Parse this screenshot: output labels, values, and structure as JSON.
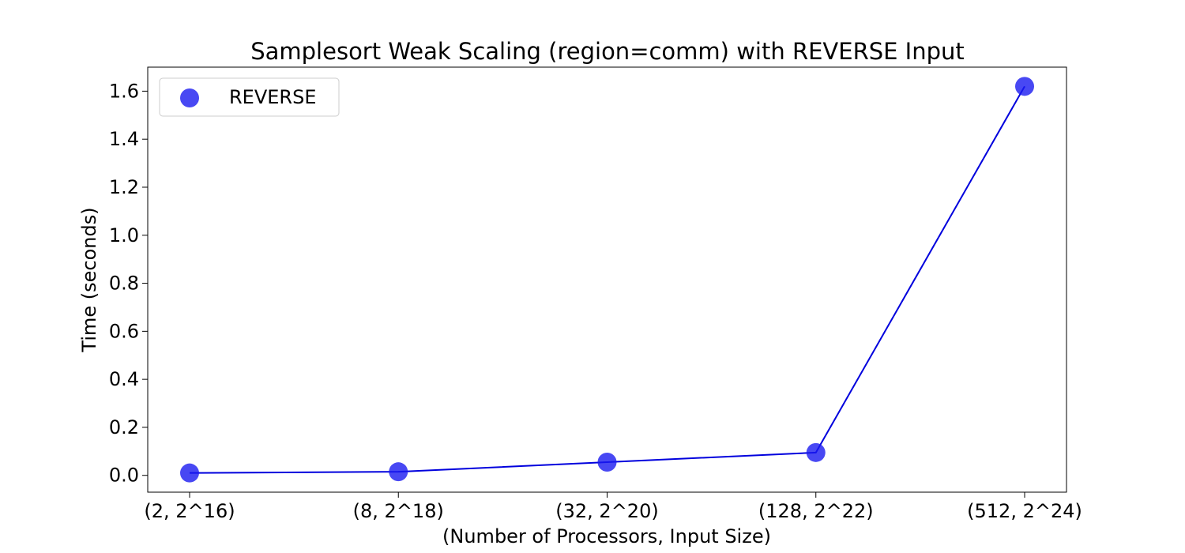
{
  "chart_data": {
    "type": "line",
    "title": "Samplesort Weak Scaling (region=comm) with REVERSE Input",
    "xlabel": "(Number of Processors, Input Size)",
    "ylabel": "Time (seconds)",
    "categories": [
      "(2, 2^16)",
      "(8, 2^18)",
      "(32, 2^20)",
      "(128, 2^22)",
      "(512, 2^24)"
    ],
    "series": [
      {
        "name": "REVERSE",
        "values": [
          0.01,
          0.015,
          0.055,
          0.095,
          1.62
        ],
        "line_color": "#0000dd",
        "marker_color": "#1a1af0"
      }
    ],
    "ylim": [
      -0.07,
      1.7
    ],
    "yticks": [
      0.0,
      0.2,
      0.4,
      0.6,
      0.8,
      1.0,
      1.2,
      1.4,
      1.6
    ],
    "ytick_labels": [
      "0.0",
      "0.2",
      "0.4",
      "0.6",
      "0.8",
      "1.0",
      "1.2",
      "1.4",
      "1.6"
    ],
    "grid": false,
    "legend_position": "top-left"
  }
}
